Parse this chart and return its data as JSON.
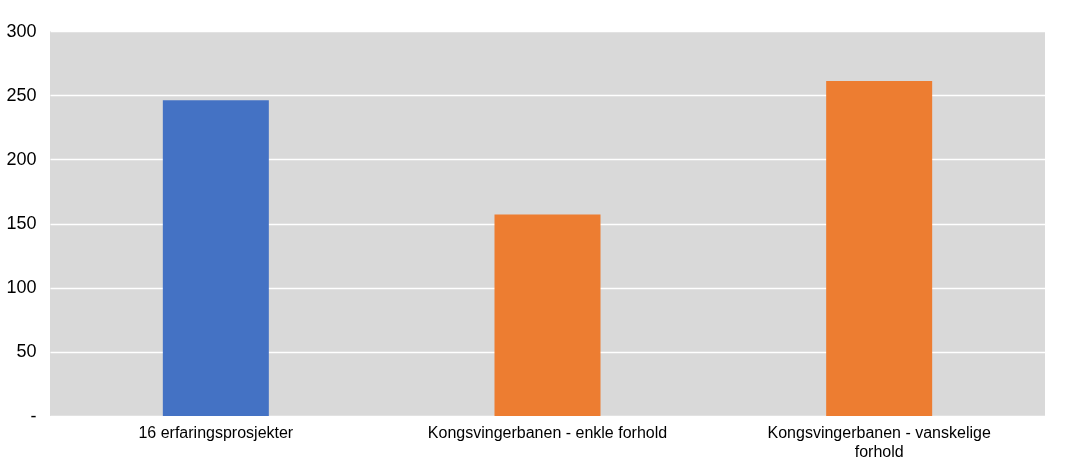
{
  "chart_data": {
    "type": "bar",
    "categories": [
      "16 erfaringsprosjekter",
      "Kongsvingerbanen - enkle forhold",
      "Kongsvingerbanen - vanskelige forhold"
    ],
    "values": [
      246,
      157,
      261
    ],
    "colors": [
      "#4472c4",
      "#ed7d31",
      "#ed7d31"
    ],
    "ylim": [
      0,
      300
    ],
    "yticks": [
      {
        "value": 0,
        "label": "-"
      },
      50,
      100,
      150,
      200,
      250,
      300
    ],
    "grid": "y"
  }
}
